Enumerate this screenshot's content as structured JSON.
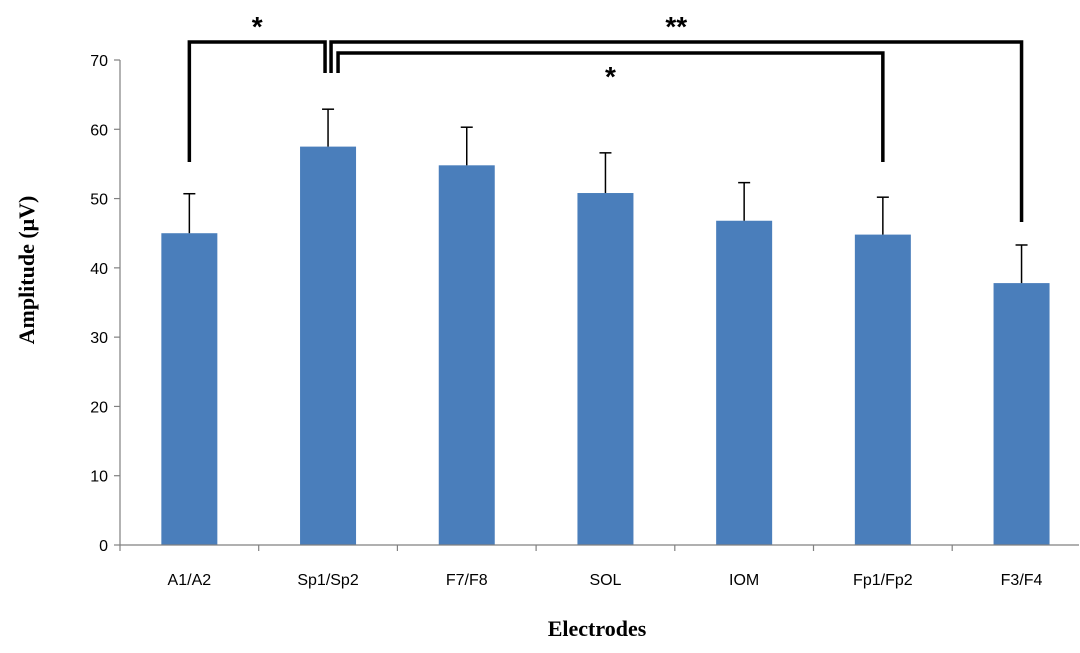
{
  "chart_data": {
    "type": "bar",
    "categories": [
      "A1/A2",
      "Sp1/Sp2",
      "F7/F8",
      "SOL",
      "IOM",
      "Fp1/Fp2",
      "F3/F4"
    ],
    "values": [
      45.0,
      57.5,
      54.8,
      50.8,
      46.8,
      44.8,
      37.8
    ],
    "error": [
      5.7,
      5.4,
      5.5,
      5.8,
      5.5,
      5.4,
      5.5
    ],
    "xlabel": "Electrodes",
    "ylabel": "Amplitude (μV)",
    "ylim": [
      0,
      70
    ],
    "yticks": [
      0,
      10,
      20,
      30,
      40,
      50,
      60,
      70
    ],
    "grid": false,
    "colors": {
      "bar": "#4a7ebb",
      "axis": "#808080",
      "bracket": "#000000"
    },
    "annotations": [
      {
        "from": "A1/A2",
        "to": "Sp1/Sp2",
        "label": "*"
      },
      {
        "from": "Sp1/Sp2",
        "to": "F3/F4",
        "label": "**"
      },
      {
        "from": "Sp1/Sp2",
        "to": "Fp1/Fp2",
        "label": "*"
      }
    ]
  }
}
